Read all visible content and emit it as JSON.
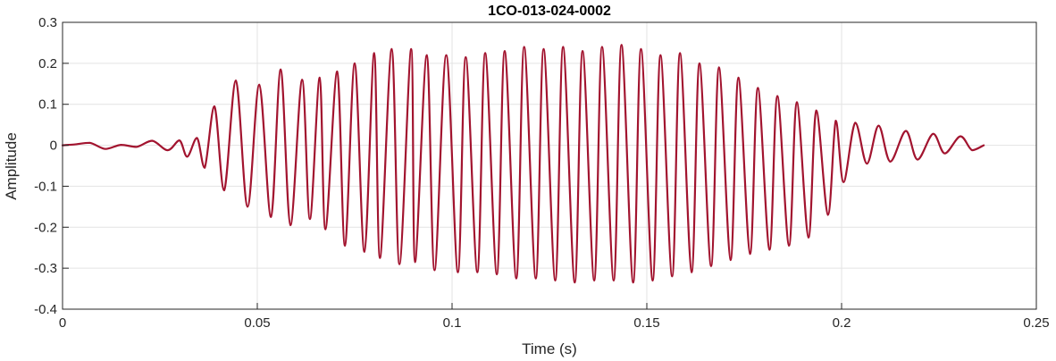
{
  "chart_data": {
    "type": "line",
    "title": "1CO-013-024-0002",
    "xlabel": "Time (s)",
    "ylabel": "Amplitude",
    "xlim": [
      0,
      0.25
    ],
    "ylim": [
      -0.4,
      0.3
    ],
    "grid": true,
    "x_ticks": [
      0,
      0.05,
      0.1,
      0.15,
      0.2,
      0.25
    ],
    "x_tick_labels": [
      "0",
      "0.05",
      "0.1",
      "0.15",
      "0.2",
      "0.25"
    ],
    "y_ticks": [
      -0.4,
      -0.3,
      -0.2,
      -0.1,
      0,
      0.1,
      0.2,
      0.3
    ],
    "y_tick_labels": [
      "-0.4",
      "-0.3",
      "-0.2",
      "-0.1",
      "0",
      "0.1",
      "0.2",
      "0.3"
    ],
    "series": [
      {
        "color": "#a2142f",
        "x": [
          0,
          0.003,
          0.007,
          0.011,
          0.015,
          0.019,
          0.023,
          0.027,
          0.03,
          0.032,
          0.0345,
          0.0365,
          0.039,
          0.0415,
          0.0445,
          0.0475,
          0.0505,
          0.0535,
          0.056,
          0.0585,
          0.0615,
          0.0635,
          0.066,
          0.0675,
          0.0705,
          0.0725,
          0.075,
          0.0775,
          0.08,
          0.0815,
          0.0845,
          0.0865,
          0.0895,
          0.0905,
          0.0935,
          0.0955,
          0.0985,
          0.1015,
          0.1035,
          0.1065,
          0.1085,
          0.1115,
          0.1135,
          0.1165,
          0.1185,
          0.1215,
          0.1235,
          0.1265,
          0.1285,
          0.1315,
          0.1335,
          0.1365,
          0.1385,
          0.1415,
          0.1435,
          0.1465,
          0.1485,
          0.1515,
          0.1535,
          0.1565,
          0.1585,
          0.1615,
          0.1635,
          0.1665,
          0.1685,
          0.1715,
          0.1735,
          0.1765,
          0.1785,
          0.1815,
          0.1835,
          0.1865,
          0.1885,
          0.1915,
          0.1935,
          0.1965,
          0.1985,
          0.2005,
          0.2035,
          0.2065,
          0.2095,
          0.2125,
          0.2165,
          0.2195,
          0.2235,
          0.2265,
          0.2305,
          0.2335,
          0.2365
        ],
        "y": [
          0,
          0.002,
          0.006,
          -0.009,
          0.001,
          -0.004,
          0.011,
          -0.012,
          0.012,
          -0.028,
          0.018,
          -0.055,
          0.095,
          -0.11,
          0.158,
          -0.15,
          0.148,
          -0.175,
          0.185,
          -0.195,
          0.16,
          -0.18,
          0.165,
          -0.205,
          0.18,
          -0.245,
          0.2,
          -0.26,
          0.225,
          -0.275,
          0.235,
          -0.29,
          0.235,
          -0.285,
          0.22,
          -0.305,
          0.22,
          -0.31,
          0.215,
          -0.31,
          0.225,
          -0.315,
          0.23,
          -0.325,
          0.24,
          -0.325,
          0.235,
          -0.33,
          0.24,
          -0.335,
          0.23,
          -0.33,
          0.24,
          -0.33,
          0.245,
          -0.335,
          0.235,
          -0.33,
          0.22,
          -0.32,
          0.225,
          -0.31,
          0.2,
          -0.295,
          0.19,
          -0.28,
          0.165,
          -0.265,
          0.14,
          -0.255,
          0.12,
          -0.245,
          0.105,
          -0.225,
          0.085,
          -0.17,
          0.06,
          -0.09,
          0.055,
          -0.045,
          0.048,
          -0.04,
          0.035,
          -0.035,
          0.028,
          -0.02,
          0.022,
          -0.012,
          0
        ]
      }
    ]
  }
}
